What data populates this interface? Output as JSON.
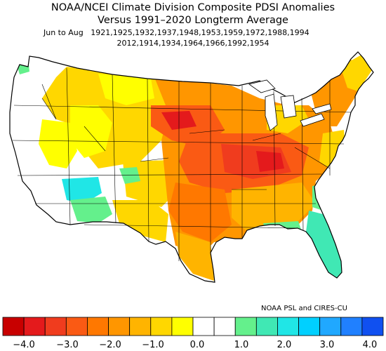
{
  "header": {
    "title_line1": "NOAA/NCEI Climate Division Composite PDSI Anomalies",
    "title_line2": "Versus 1991–2020 Longterm Average",
    "season": "Jun to Aug",
    "years_line1": "1921,1925,1932,1937,1948,1953,1959,1972,1988,1994",
    "years_line2": "2012,1914,1934,1964,1966,1992,1954"
  },
  "credit": "NOAA PSL and CIRES-CU",
  "colors": {
    "neg_extreme": "#c80000",
    "neg_4": "#e41a1c",
    "neg_35": "#f03c1e",
    "neg_3": "#fa5a14",
    "neg_25": "#ff7800",
    "neg_2": "#ff9600",
    "neg_15": "#ffb400",
    "neg_1": "#ffd700",
    "neg_05": "#ffff00",
    "neutral": "#ffffff",
    "pos_1": "#64f08c",
    "pos_15": "#40e8b4",
    "pos_2": "#20e6e6",
    "pos_25": "#00d0ff",
    "pos_3": "#20a8ff",
    "pos_35": "#2080ff",
    "pos_4": "#1050f0"
  },
  "legend": {
    "ticks": [
      "−4.0",
      "−3.0",
      "−2.0",
      "−1.0",
      "0.0",
      "1.0",
      "2.0",
      "3.0",
      "4.0"
    ]
  }
}
